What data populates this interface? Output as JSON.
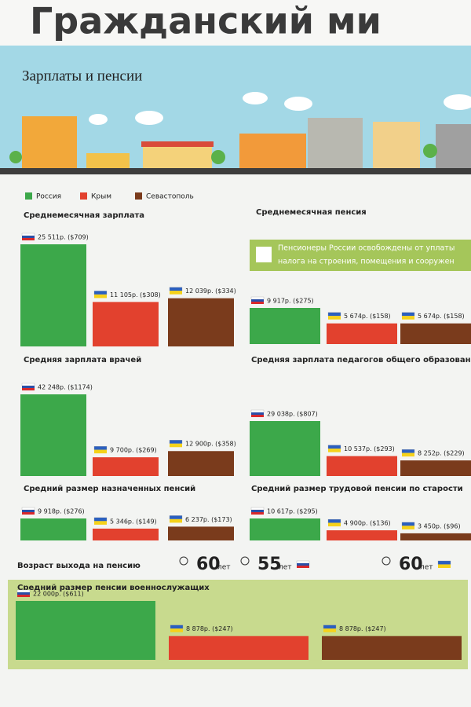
{
  "header": {
    "title": "Гражданский ми",
    "subtitle": "Зарплаты и пенсии"
  },
  "legend": [
    {
      "name": "Россия",
      "color": "#3ca84a"
    },
    {
      "name": "Крым",
      "color": "#e2412e"
    },
    {
      "name": "Севастополь",
      "color": "#7a3b1c"
    }
  ],
  "note": [
    "Пенсионеры России освобождены от уплаты",
    "налога на строения, помещения и сооружен"
  ],
  "chart_data": [
    {
      "type": "bar",
      "title": "Среднемесячная зарплата",
      "values": [
        25511,
        11105,
        12039
      ],
      "value_labels": [
        "25 511р. ($709)",
        "11 105р. ($308)",
        "12 039р. ($334)"
      ]
    },
    {
      "type": "bar",
      "title": "Среднемесячная пенсия",
      "values": [
        9917,
        5674,
        5674
      ],
      "value_labels": [
        "9 917р. ($275)",
        "5 674р. ($158)",
        "5 674р. ($158)"
      ]
    },
    {
      "type": "bar",
      "title": "Средняя зарплата врачей",
      "values": [
        42248,
        9700,
        12900
      ],
      "value_labels": [
        "42 248р. ($1174)",
        "9 700р. ($269)",
        "12 900р. ($358)"
      ]
    },
    {
      "type": "bar",
      "title": "Средняя зарплата педагогов общего образования",
      "values": [
        29038,
        10537,
        8252
      ],
      "value_labels": [
        "29 038р. ($807)",
        "10 537р. ($293)",
        "8 252р. ($229)"
      ]
    },
    {
      "type": "bar",
      "title": "Средний размер назначенных пенсий",
      "values": [
        9918,
        5346,
        6237
      ],
      "value_labels": [
        "9 918р. ($276)",
        "5 346р. ($149)",
        "6 237р. ($173)"
      ]
    },
    {
      "type": "bar",
      "title": "Средний размер трудовой пенсии по старости",
      "values": [
        10617,
        4900,
        3450
      ],
      "value_labels": [
        "10 617р. ($295)",
        "4 900р. ($136)",
        "3 450р. ($96)"
      ]
    },
    {
      "type": "bar",
      "title": "Средний размер пенсии военнослужащих",
      "values": [
        22000,
        8878,
        8878
      ],
      "value_labels": [
        "22 000р. ($611)",
        "8 878р. ($247)",
        "8 878р. ($247)"
      ]
    }
  ],
  "retirement": {
    "title": "Возраст выхода на пенсию",
    "items": [
      {
        "value": 60,
        "unit": "лет"
      },
      {
        "value": 55,
        "unit": "лет"
      },
      {
        "value": 60,
        "unit": "лет"
      }
    ]
  }
}
